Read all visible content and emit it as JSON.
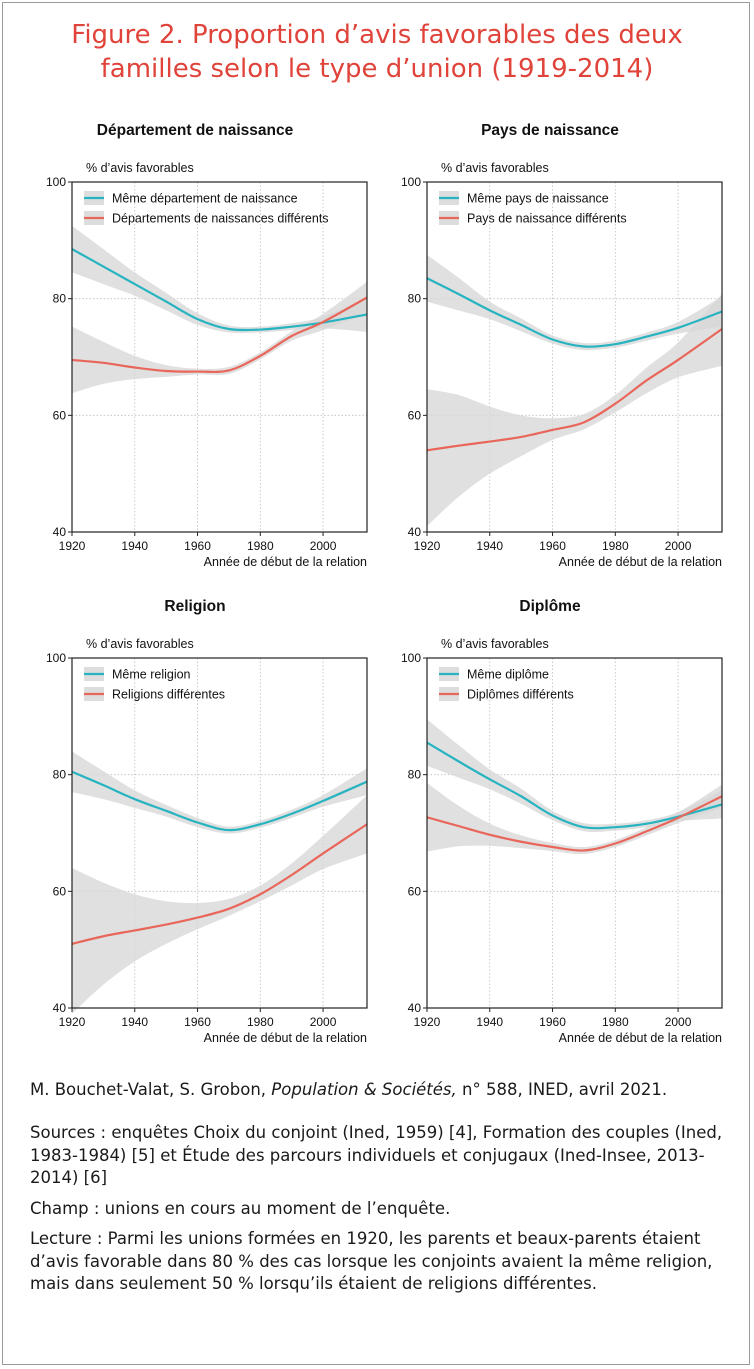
{
  "figure_title": {
    "line1": "Figure 2. Proportion d’avis favorables des deux",
    "line2": "familles selon le type d’union (1919-2014)"
  },
  "colors": {
    "same": "#27b3c0",
    "different": "#e8665a",
    "band": "#d7d7d7",
    "title": "#e0433a"
  },
  "chart_data": [
    {
      "type": "line",
      "title": "Département de naissance",
      "ylabel": "% d’avis favorables",
      "xlabel": "Année de début de la relation",
      "xlim": [
        1920,
        2014
      ],
      "ylim": [
        40,
        100
      ],
      "xticks": [
        "1920",
        "1940",
        "1960",
        "1980",
        "2000"
      ],
      "yticks": [
        "40",
        "60",
        "80",
        "100"
      ],
      "grid": true,
      "legend_position": "top-left",
      "x": [
        1920,
        1930,
        1940,
        1950,
        1960,
        1970,
        1980,
        1990,
        2000,
        2014
      ],
      "series": [
        {
          "name": "Même département de naissance",
          "values": [
            88.5,
            85.5,
            82.5,
            79.5,
            76.5,
            74.8,
            74.7,
            75.2,
            75.9,
            77.3
          ],
          "lower": [
            84.5,
            82.5,
            80.5,
            78.0,
            75.5,
            74.2,
            74.2,
            74.6,
            74.9,
            74.3
          ],
          "upper": [
            92.5,
            88.5,
            84.5,
            81.0,
            77.5,
            75.4,
            75.2,
            75.8,
            76.9,
            80.3
          ]
        },
        {
          "name": "Départements de naissances différents",
          "values": [
            69.5,
            69.0,
            68.2,
            67.6,
            67.5,
            67.7,
            70.2,
            73.6,
            76.0,
            80.2
          ],
          "lower": [
            63.8,
            65.4,
            66.2,
            66.6,
            67.0,
            67.1,
            69.6,
            72.8,
            74.6,
            77.5
          ],
          "upper": [
            75.2,
            72.6,
            70.2,
            68.6,
            68.0,
            68.3,
            70.8,
            74.4,
            77.4,
            82.9
          ]
        }
      ]
    },
    {
      "type": "line",
      "title": "Pays de naissance",
      "ylabel": "% d’avis favorables",
      "xlabel": "Année de début de la relation",
      "xlim": [
        1920,
        2014
      ],
      "ylim": [
        40,
        100
      ],
      "xticks": [
        "1920",
        "1940",
        "1960",
        "1980",
        "2000"
      ],
      "yticks": [
        "40",
        "60",
        "80",
        "100"
      ],
      "grid": true,
      "legend_position": "top-left",
      "x": [
        1920,
        1930,
        1940,
        1950,
        1960,
        1970,
        1980,
        1990,
        2000,
        2014
      ],
      "series": [
        {
          "name": "Même pays de naissance",
          "values": [
            83.5,
            80.8,
            78.0,
            75.5,
            73.0,
            71.8,
            72.2,
            73.5,
            75.0,
            77.8
          ],
          "lower": [
            79.5,
            78.0,
            76.5,
            74.4,
            72.3,
            71.2,
            71.6,
            72.8,
            74.0,
            75.2
          ],
          "upper": [
            87.5,
            83.6,
            79.5,
            76.6,
            73.7,
            72.4,
            72.8,
            74.2,
            76.0,
            80.4
          ]
        },
        {
          "name": "Pays de naissance différents",
          "values": [
            54.0,
            54.8,
            55.5,
            56.3,
            57.5,
            58.8,
            62.0,
            66.0,
            69.5,
            74.8
          ],
          "lower": [
            41.0,
            46.0,
            50.0,
            53.0,
            55.8,
            57.6,
            60.5,
            63.8,
            66.5,
            68.5
          ],
          "upper": [
            64.5,
            63.5,
            61.5,
            60.0,
            59.5,
            60.2,
            63.5,
            68.2,
            72.5,
            80.8
          ]
        }
      ]
    },
    {
      "type": "line",
      "title": "Religion",
      "ylabel": "% d’avis favorables",
      "xlabel": "Année de début de la relation",
      "xlim": [
        1920,
        2014
      ],
      "ylim": [
        40,
        100
      ],
      "xticks": [
        "1920",
        "1940",
        "1960",
        "1980",
        "2000"
      ],
      "yticks": [
        "40",
        "60",
        "80",
        "100"
      ],
      "grid": true,
      "legend_position": "top-left",
      "x": [
        1920,
        1930,
        1940,
        1950,
        1960,
        1970,
        1980,
        1990,
        2000,
        2014
      ],
      "series": [
        {
          "name": "Même religion",
          "values": [
            80.5,
            78.2,
            75.8,
            73.8,
            71.8,
            70.5,
            71.5,
            73.3,
            75.5,
            78.8
          ],
          "lower": [
            77.0,
            75.8,
            74.3,
            72.8,
            71.0,
            69.9,
            70.9,
            72.6,
            74.5,
            76.5
          ],
          "upper": [
            84.0,
            80.6,
            77.3,
            74.8,
            72.6,
            71.1,
            72.1,
            74.0,
            76.5,
            81.1
          ]
        },
        {
          "name": "Religions différentes",
          "values": [
            51.0,
            52.3,
            53.3,
            54.3,
            55.5,
            57.0,
            59.5,
            62.8,
            66.5,
            71.5
          ],
          "lower": [
            39.0,
            44.0,
            48.0,
            51.0,
            53.5,
            55.8,
            58.3,
            61.0,
            63.8,
            66.5
          ],
          "upper": [
            64.0,
            61.5,
            59.5,
            58.3,
            58.0,
            58.7,
            61.0,
            64.8,
            69.5,
            76.5
          ]
        }
      ]
    },
    {
      "type": "line",
      "title": "Diplôme",
      "ylabel": "% d’avis favorables",
      "xlabel": "Année de début de la relation",
      "xlim": [
        1920,
        2014
      ],
      "ylim": [
        40,
        100
      ],
      "xticks": [
        "1920",
        "1940",
        "1960",
        "1980",
        "2000"
      ],
      "yticks": [
        "40",
        "60",
        "80",
        "100"
      ],
      "grid": true,
      "legend_position": "top-left",
      "x": [
        1920,
        1930,
        1940,
        1950,
        1960,
        1970,
        1980,
        1990,
        2000,
        2014
      ],
      "series": [
        {
          "name": "Même diplôme",
          "values": [
            85.5,
            82.3,
            79.2,
            76.3,
            73.0,
            71.0,
            71.0,
            71.6,
            72.8,
            74.9
          ],
          "lower": [
            81.5,
            79.5,
            77.5,
            75.0,
            72.2,
            70.3,
            70.4,
            71.0,
            72.0,
            72.5
          ],
          "upper": [
            89.5,
            85.1,
            80.9,
            77.6,
            73.8,
            71.7,
            71.6,
            72.2,
            73.6,
            77.3
          ]
        },
        {
          "name": "Diplômes différents",
          "values": [
            72.7,
            71.2,
            69.7,
            68.5,
            67.6,
            67.0,
            68.2,
            70.3,
            72.6,
            76.3
          ],
          "lower": [
            66.8,
            67.7,
            67.8,
            67.4,
            66.9,
            66.4,
            67.6,
            69.6,
            71.7,
            74.3
          ],
          "upper": [
            78.6,
            74.7,
            71.6,
            69.6,
            68.3,
            67.6,
            68.8,
            71.0,
            73.5,
            78.3
          ]
        }
      ]
    }
  ],
  "credit": {
    "authors": "M. Bouchet-Valat, S. Grobon, ",
    "journal": "Population & Sociétés,",
    "rest": " n° 588, INED, avril 2021."
  },
  "notes": {
    "sources": "Sources : enquêtes Choix du conjoint (Ined, 1959) [4], Formation des couples (Ined, 1983-1984) [5] et Étude des parcours individuels et conjugaux (Ined-Insee, 2013-2014) [6]",
    "champ": "Champ : unions en cours au moment de l’enquête.",
    "lecture": "Lecture : Parmi les unions formées en 1920, les parents et beaux-parents étaient d’avis favorable dans 80 % des cas lorsque les conjoints avaient la même religion, mais dans seulement 50 % lorsqu’ils étaient de religions différentes."
  }
}
